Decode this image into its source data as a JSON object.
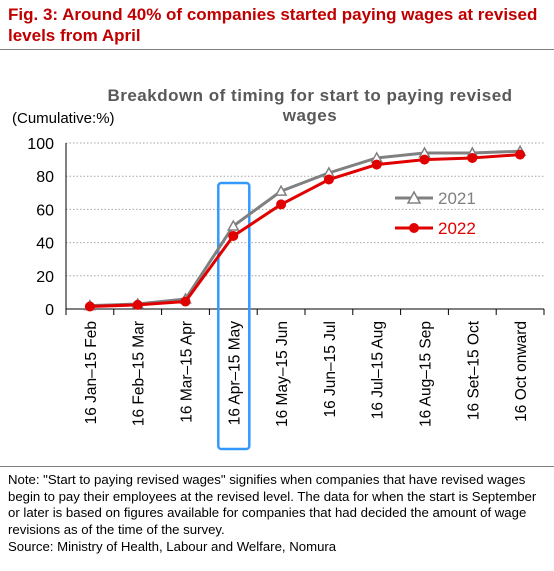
{
  "figure": {
    "title": "Fig. 3: Around 40% of companies started paying wages at revised levels from April",
    "note": "Note: \"Start to paying revised wages\" signifies when companies that have revised wages begin to pay their employees at the revised level. The data for when the start is September or later is based on figures available for companies that had decided the amount of wage revisions as of the time of the survey.",
    "source": "Source: Ministry of Health, Labour and Welfare, Nomura"
  },
  "chart_data": {
    "type": "line",
    "title": "Breakdown of timing for start to paying revised wages",
    "ylabel": "(Cumulative:%)",
    "xlabel": "",
    "ylim": [
      0,
      100
    ],
    "yticks": [
      0,
      20,
      40,
      60,
      80,
      100
    ],
    "grid": true,
    "legend_position": "right",
    "highlighted_category": "16 Apr–15 May",
    "categories": [
      "16 Jan–15 Feb",
      "16 Feb–15 Mar",
      "16 Mar–15 Apr",
      "16 Apr–15 May",
      "16 May–15 Jun",
      "16 Jun–15 Jul",
      "16 Jul–15 Aug",
      "16 Aug–15 Sep",
      "16 Set–15 Oct",
      "16 Oct onward"
    ],
    "series": [
      {
        "name": "2021",
        "color": "#808080",
        "marker": "open-triangle",
        "values": [
          2,
          3,
          6,
          50,
          71,
          82,
          91,
          94,
          94,
          95
        ]
      },
      {
        "name": "2022",
        "color": "#e00000",
        "marker": "filled-circle",
        "values": [
          1.5,
          2.5,
          4.5,
          44,
          63,
          78,
          87,
          90,
          91,
          93
        ]
      }
    ],
    "highlight_color": "#3399ff"
  }
}
